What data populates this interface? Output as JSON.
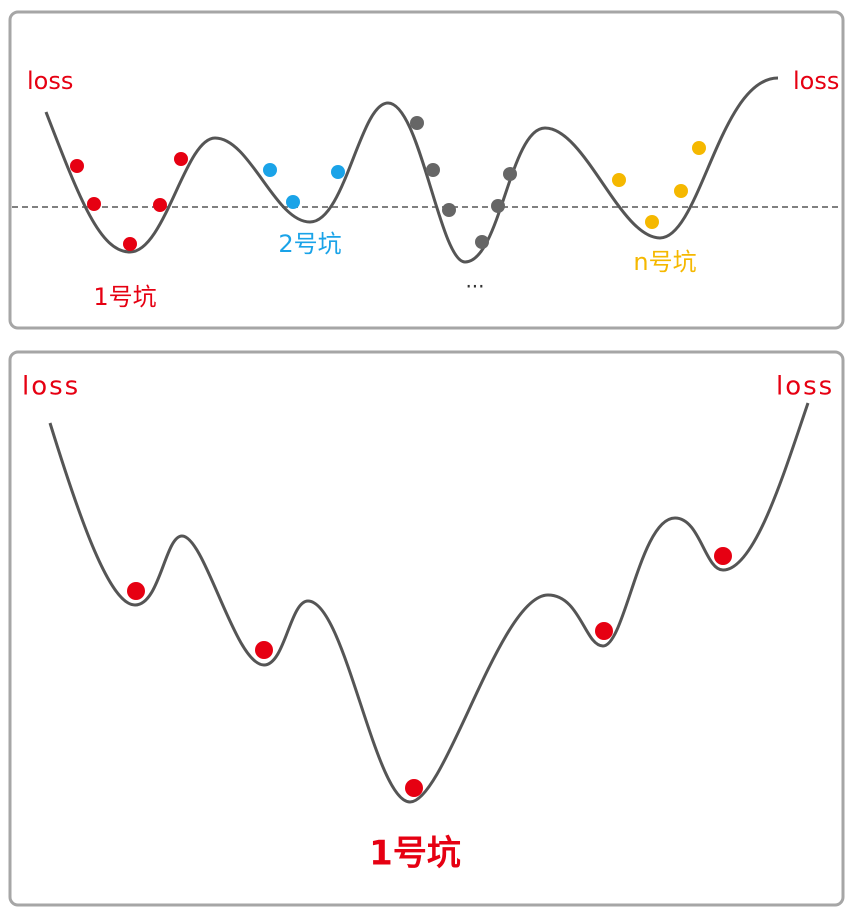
{
  "top_panel": {
    "loss_left": "loss",
    "loss_right": "loss",
    "pits": [
      "1号坑",
      "2号坑",
      "...",
      "n号坑"
    ]
  },
  "bottom_panel": {
    "loss_left": "loss",
    "loss_right": "loss",
    "pit": "1号坑"
  }
}
